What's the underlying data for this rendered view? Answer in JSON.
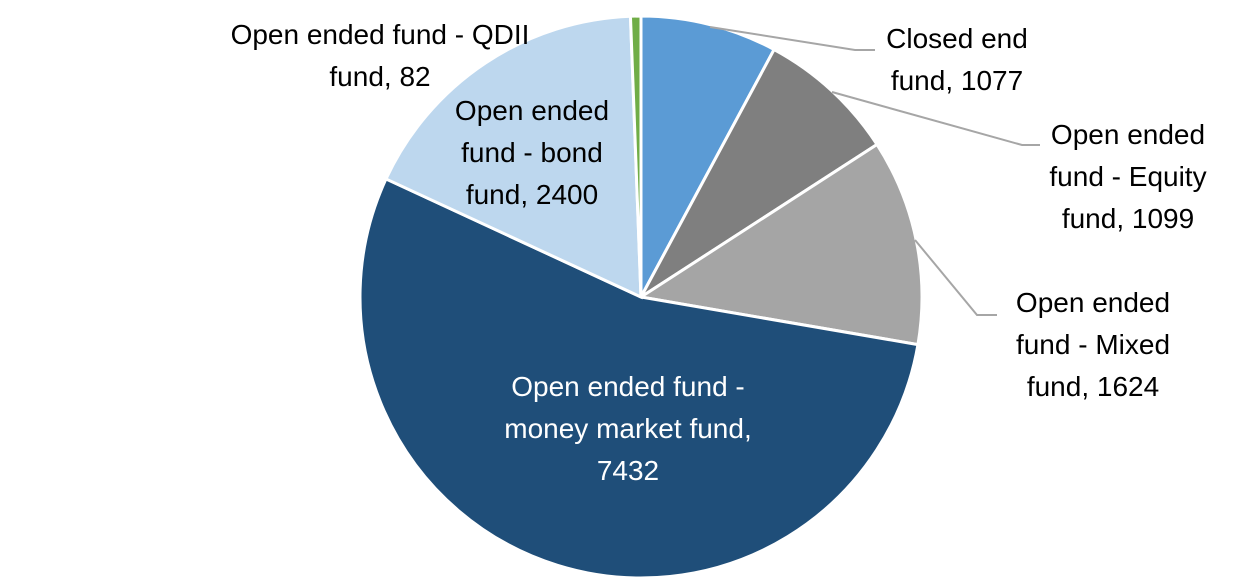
{
  "chart_data": {
    "type": "pie",
    "categories": [
      "Closed end fund",
      "Open ended fund - Equity fund",
      "Open ended fund - Mixed fund",
      "Open ended fund - money market fund",
      "Open ended fund - bond fund",
      "Open ended fund - QDII fund"
    ],
    "values": [
      1077,
      1099,
      1624,
      7432,
      2400,
      82
    ],
    "colors": [
      "#5b9bd5",
      "#7f7f7f",
      "#a5a5a5",
      "#1f4e79",
      "#bdd7ee",
      "#70ad47"
    ]
  }
}
